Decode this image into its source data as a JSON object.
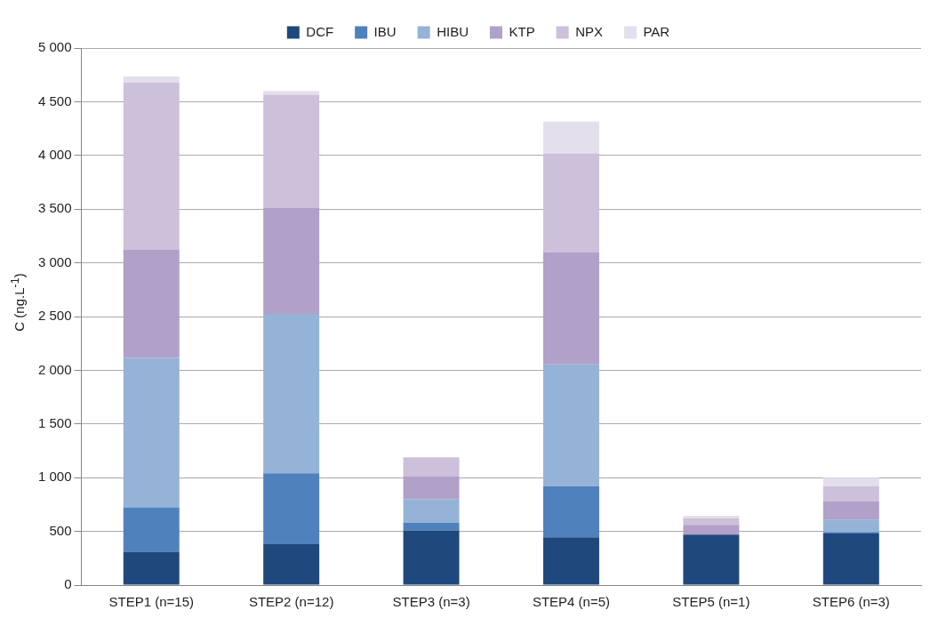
{
  "chart_data": {
    "type": "bar",
    "stacked": true,
    "ylabel": "C (ng.L$^{-1}$)",
    "categories": [
      "STEP1 (n=15)",
      "STEP2 (n=12)",
      "STEP3 (n=3)",
      "STEP4 (n=5)",
      "STEP5 (n=1)",
      "STEP6 (n=3)"
    ],
    "series": [
      {
        "name": "DCF",
        "color": "#1f497d",
        "values": [
          310,
          380,
          510,
          445,
          470,
          480
        ]
      },
      {
        "name": "IBU",
        "color": "#4f81bd",
        "values": [
          415,
          660,
          70,
          475,
          0,
          15
        ]
      },
      {
        "name": "HIBU",
        "color": "#95b3d7",
        "values": [
          1390,
          1485,
          220,
          1135,
          0,
          115
        ]
      },
      {
        "name": "KTP",
        "color": "#b1a0c7",
        "values": [
          1005,
          990,
          210,
          1045,
          90,
          170
        ]
      },
      {
        "name": "NPX",
        "color": "#ccc0da",
        "values": [
          1560,
          1050,
          180,
          920,
          60,
          140
        ]
      },
      {
        "name": "PAR",
        "color": "#e4dfec",
        "values": [
          55,
          35,
          0,
          295,
          25,
          80
        ]
      }
    ],
    "ylim": [
      0,
      5000
    ],
    "yticks": [
      0,
      {
        "value": 500,
        "label": "500"
      },
      {
        "value": 1000,
        "label": "1 000"
      },
      {
        "value": 1500,
        "label": "1 500"
      },
      {
        "value": 2000,
        "label": "2 000"
      },
      {
        "value": 2500,
        "label": "2 500"
      },
      {
        "value": 3000,
        "label": "3 000"
      },
      {
        "value": 3500,
        "label": "3 500"
      },
      {
        "value": 4000,
        "label": "4 000"
      },
      {
        "value": 4500,
        "label": "4 500"
      },
      {
        "value": 5000,
        "label": "5 000"
      }
    ],
    "grid": "y",
    "legend": "top"
  }
}
